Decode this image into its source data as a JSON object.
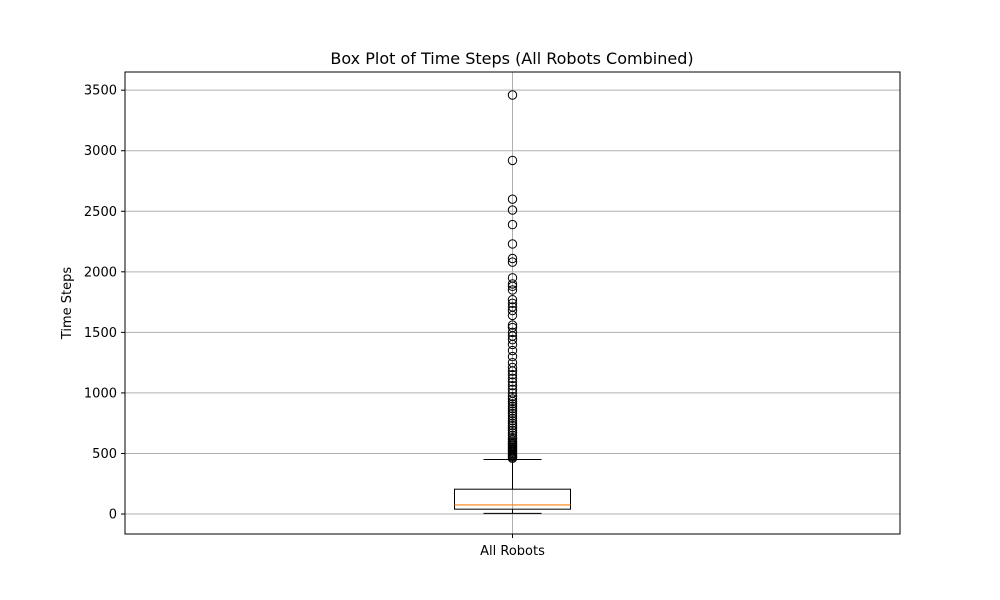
{
  "chart_data": {
    "type": "box",
    "title": "Box Plot of Time Steps (All Robots Combined)",
    "xlabel": "",
    "ylabel": "Time Steps",
    "categories": [
      "All Robots"
    ],
    "ylim": [
      -165,
      3650
    ],
    "yticks": [
      0,
      500,
      1000,
      1500,
      2000,
      2500,
      3000,
      3500
    ],
    "grid": true,
    "colors": {
      "box_edge": "#000000",
      "median": "#ff7f0e",
      "grid": "#b0b0b0",
      "outlier_edge": "#000000"
    },
    "box": {
      "whisker_low": 5,
      "q1": 40,
      "median": 75,
      "q3": 205,
      "whisker_high": 450,
      "outliers": [
        460,
        470,
        480,
        490,
        500,
        510,
        520,
        530,
        540,
        550,
        560,
        570,
        580,
        590,
        600,
        615,
        630,
        650,
        670,
        690,
        710,
        730,
        750,
        770,
        790,
        810,
        830,
        850,
        870,
        890,
        910,
        930,
        950,
        970,
        1000,
        1030,
        1060,
        1090,
        1120,
        1150,
        1180,
        1210,
        1250,
        1300,
        1350,
        1400,
        1440,
        1470,
        1500,
        1540,
        1560,
        1640,
        1680,
        1710,
        1740,
        1770,
        1850,
        1880,
        1900,
        1950,
        2080,
        2110,
        2230,
        2390,
        2510,
        2600,
        2920,
        3460
      ]
    }
  }
}
